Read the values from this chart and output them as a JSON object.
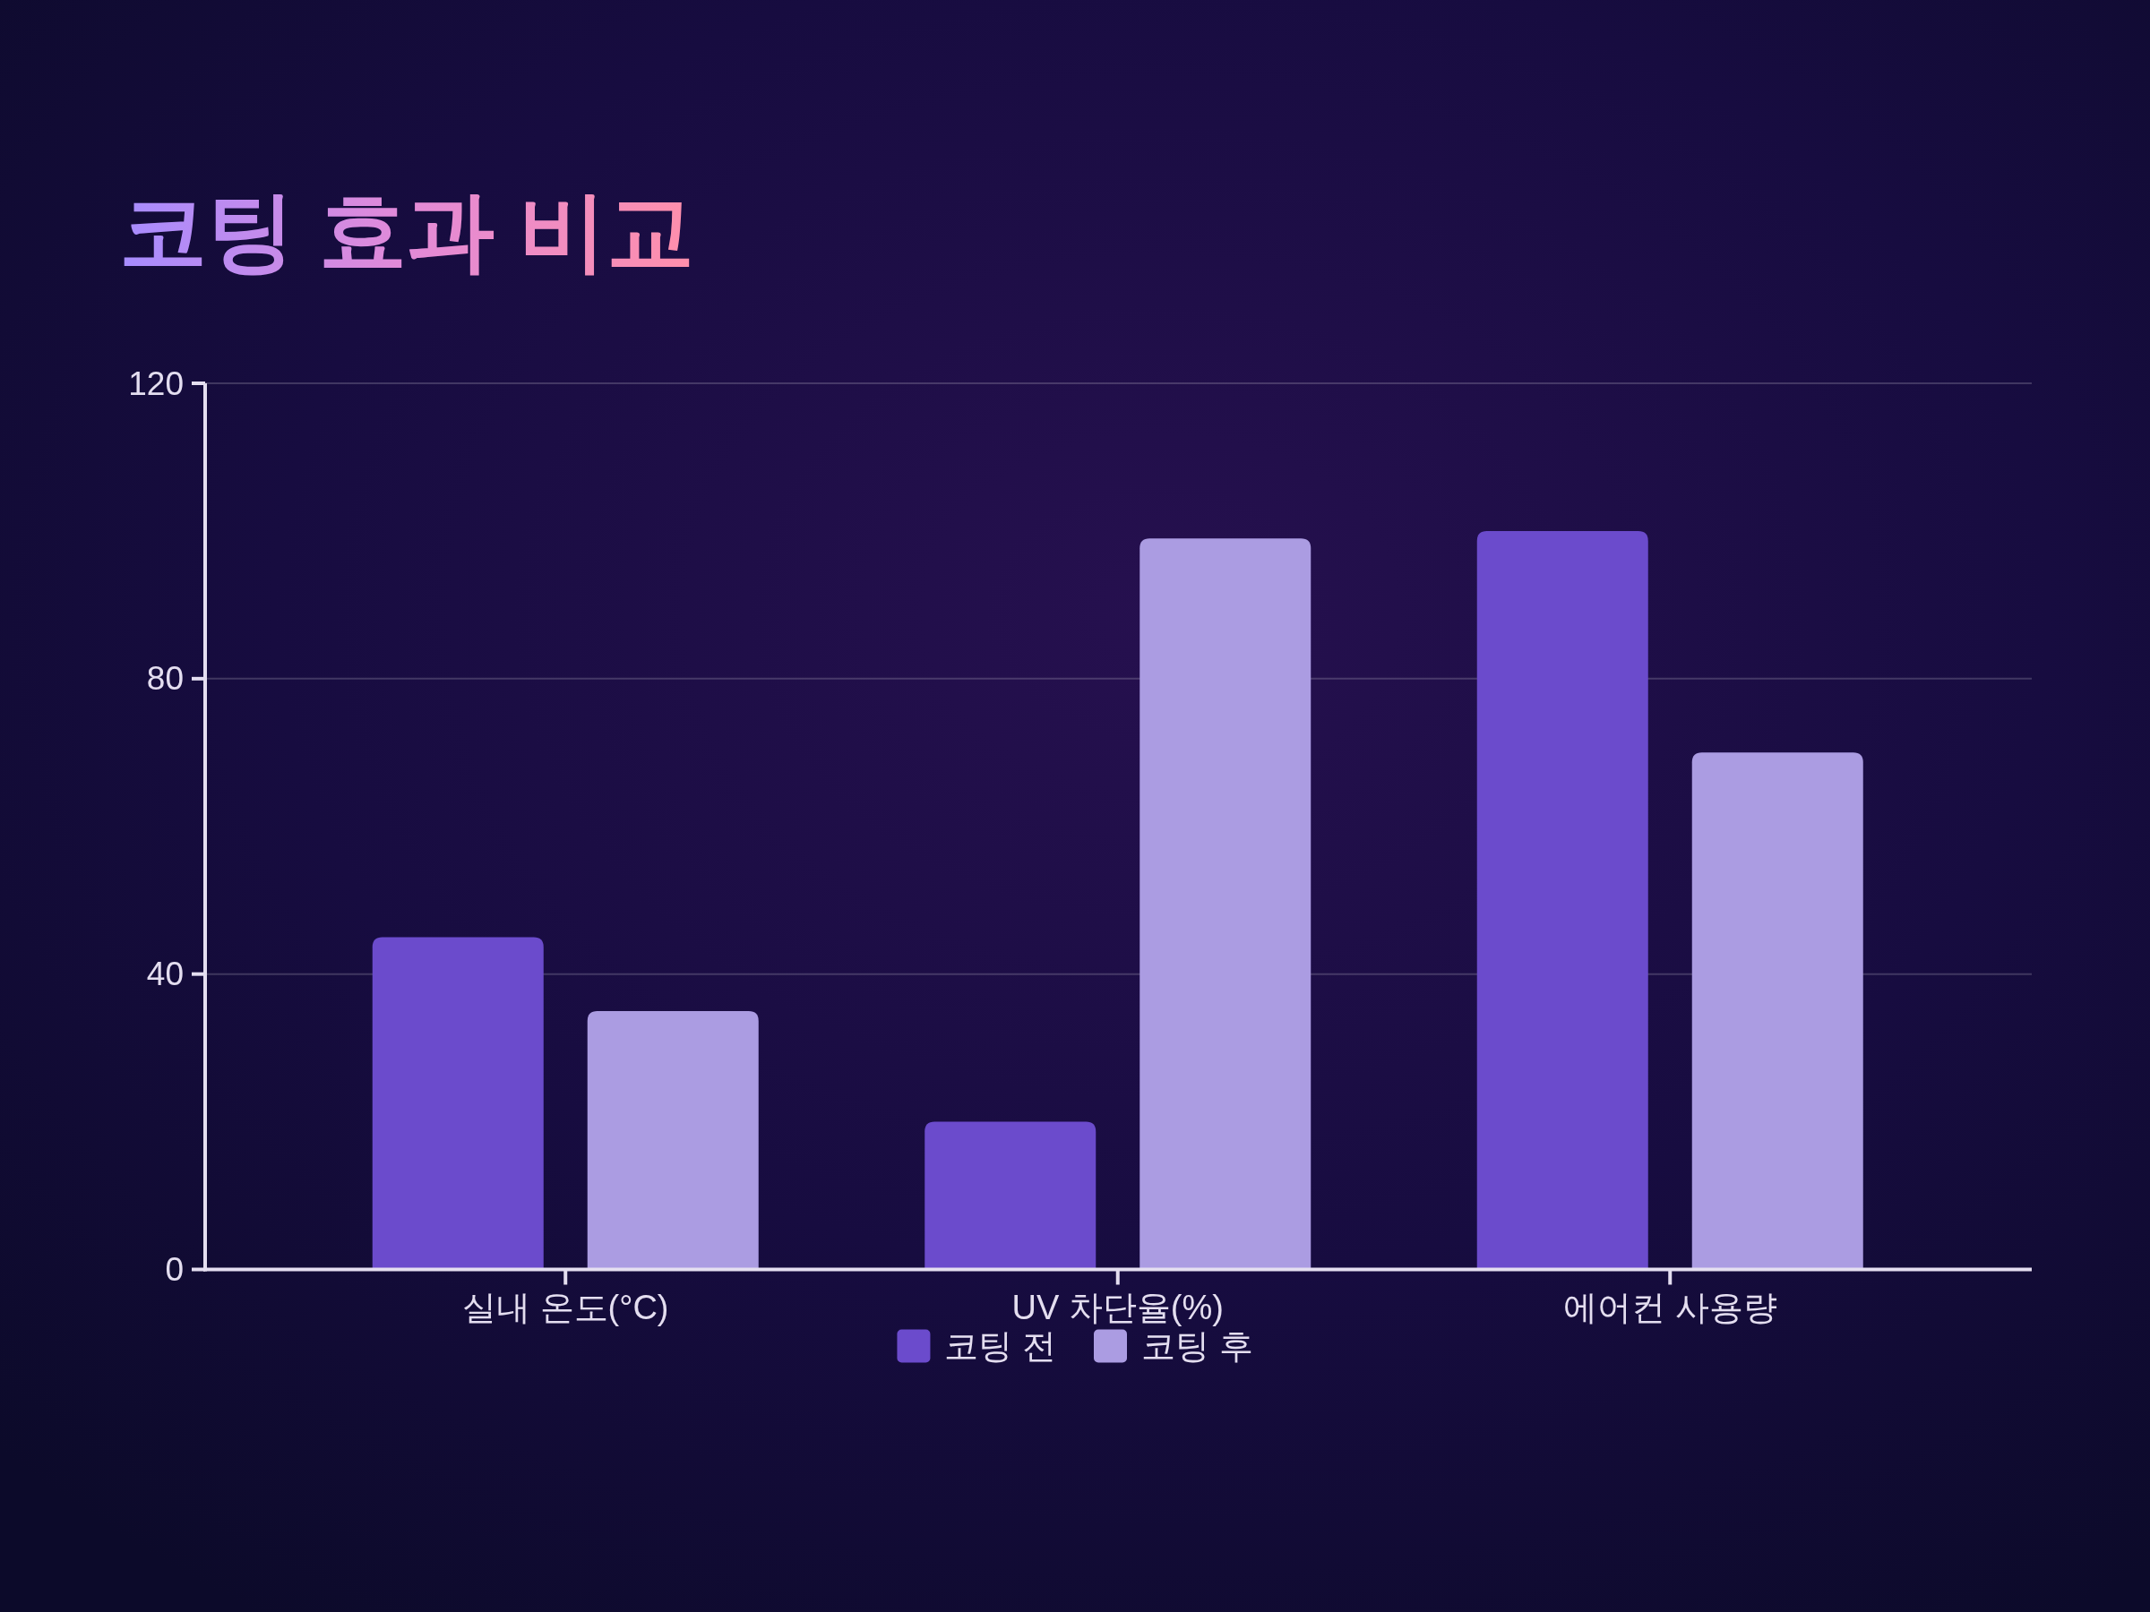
{
  "chart_data": {
    "type": "bar",
    "title": "코팅 효과 비교",
    "categories": [
      "실내 온도(°C)",
      "UV 차단율(%)",
      "에어컨 사용량"
    ],
    "series": [
      {
        "name": "코팅 전",
        "color": "#6b4bcc",
        "values": [
          45,
          20,
          100
        ]
      },
      {
        "name": "코팅 후",
        "color": "#ab9ce2",
        "values": [
          35,
          99,
          70
        ]
      }
    ],
    "ylim": [
      0,
      120
    ],
    "yticks": [
      0,
      40,
      80,
      120
    ],
    "grid": "y",
    "legend": "bottom"
  }
}
